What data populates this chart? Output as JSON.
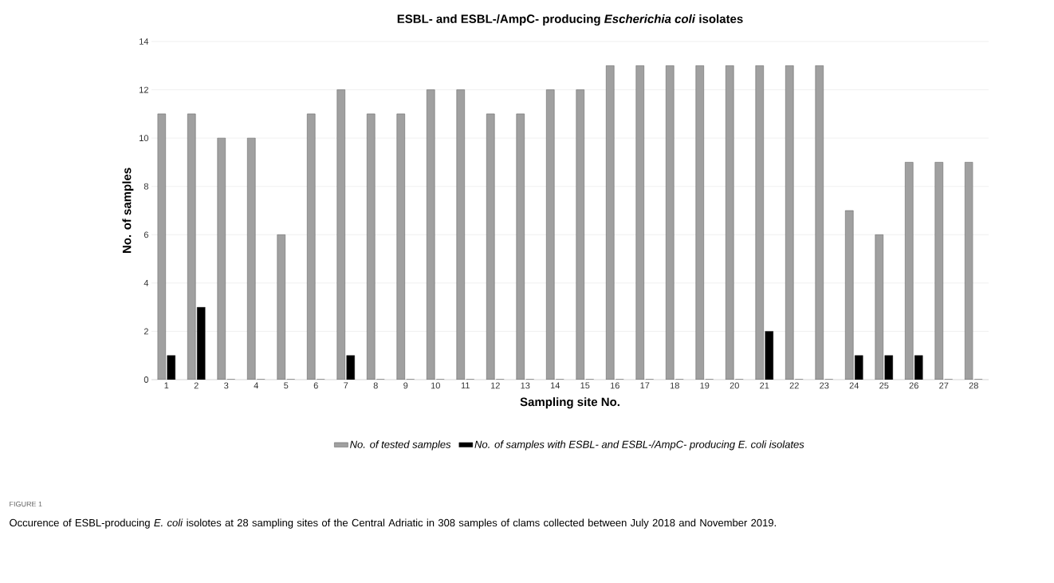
{
  "chart_data": {
    "type": "bar",
    "title": "ESBL- and ESBL-/AmpC- producing *Escherichia coli* isolates",
    "xlabel": "Sampling site No.",
    "ylabel": "No. of samples",
    "categories": [
      "1",
      "2",
      "3",
      "4",
      "5",
      "6",
      "7",
      "8",
      "9",
      "10",
      "11",
      "12",
      "13",
      "14",
      "15",
      "16",
      "17",
      "18",
      "19",
      "20",
      "21",
      "22",
      "23",
      "24",
      "25",
      "26",
      "27",
      "28"
    ],
    "series": [
      {
        "name": "No. of tested samples",
        "color": "#a0a0a0",
        "values": [
          11,
          11,
          10,
          10,
          6,
          11,
          12,
          11,
          11,
          12,
          12,
          11,
          11,
          12,
          12,
          13,
          13,
          13,
          13,
          13,
          13,
          13,
          13,
          7,
          6,
          9,
          9,
          9
        ]
      },
      {
        "name": "No. of samples with ESBL- and ESBL-/AmpC- producing E. coli isolates",
        "color": "#000000",
        "values": [
          1,
          3,
          0,
          0,
          0,
          0,
          1,
          0,
          0,
          0,
          0,
          0,
          0,
          0,
          0,
          0,
          0,
          0,
          0,
          0,
          2,
          0,
          0,
          1,
          1,
          1,
          0,
          0
        ]
      }
    ],
    "ylim": [
      0,
      14
    ],
    "yticks": [
      0,
      2,
      4,
      6,
      8,
      10,
      12,
      14
    ],
    "grid": "y",
    "legend": "bottom",
    "annotations": [
      "FIGURE 1",
      "Occurence of ESBL-producing *E. coli* isolotes at 28 sampling sites of the Central Adriatic in 308 samples of clams collected between July 2018 and November 2019."
    ]
  }
}
